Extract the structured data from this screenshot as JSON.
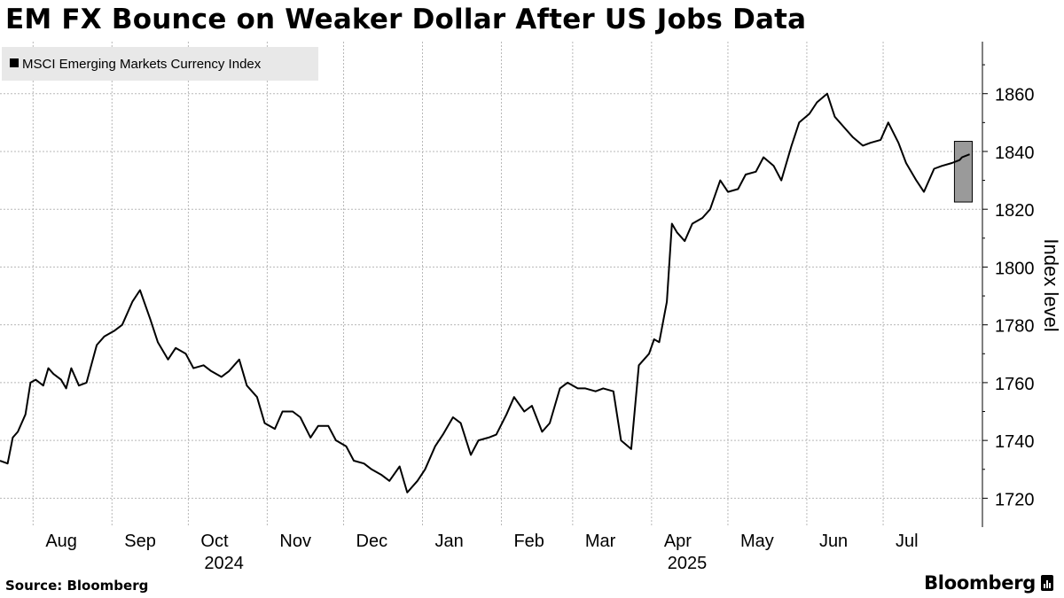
{
  "header": {
    "title": "EM FX Bounce on Weaker Dollar After US Jobs Data"
  },
  "footer": {
    "source": "Source: Bloomberg",
    "brand": "Bloomberg"
  },
  "chart_data": {
    "type": "line",
    "title": "EM FX Bounce on Weaker Dollar After US Jobs Data",
    "ylabel": "Index level",
    "xlabel": "",
    "ylim": [
      1710,
      1878
    ],
    "y_ticks": [
      1720,
      1740,
      1760,
      1780,
      1800,
      1820,
      1840,
      1860
    ],
    "y_axis_side": "right",
    "grid": true,
    "legend": {
      "placement": "top-left",
      "entries": [
        "MSCI Emerging Markets Currency Index"
      ]
    },
    "x_ticks": [
      {
        "label": "Aug",
        "date": "2024-08-01"
      },
      {
        "label": "Sep",
        "date": "2024-09-01"
      },
      {
        "label": "Oct",
        "date": "2024-10-01"
      },
      {
        "label": "Nov",
        "date": "2024-11-01"
      },
      {
        "label": "Dec",
        "date": "2024-12-01"
      },
      {
        "label": "Jan",
        "date": "2025-01-01"
      },
      {
        "label": "Feb",
        "date": "2025-02-01"
      },
      {
        "label": "Mar",
        "date": "2025-03-01"
      },
      {
        "label": "Apr",
        "date": "2025-04-01"
      },
      {
        "label": "May",
        "date": "2025-05-01"
      },
      {
        "label": "Jun",
        "date": "2025-06-01"
      },
      {
        "label": "Jul",
        "date": "2025-07-01"
      }
    ],
    "year_labels": [
      {
        "label": "2024",
        "date": "2024-10-15"
      },
      {
        "label": "2025",
        "date": "2025-04-15"
      }
    ],
    "x_range": [
      "2024-07-19",
      "2025-08-09"
    ],
    "highlight": {
      "x_from": "2025-07-29",
      "x_to": "2025-08-05",
      "y_from": 1822.5,
      "y_to": 1843.5
    },
    "series": [
      {
        "name": "MSCI Emerging Markets Currency Index",
        "x": [
          "2024-07-19",
          "2024-07-22",
          "2024-07-24",
          "2024-07-26",
          "2024-07-29",
          "2024-07-31",
          "2024-08-02",
          "2024-08-05",
          "2024-08-07",
          "2024-08-09",
          "2024-08-12",
          "2024-08-14",
          "2024-08-16",
          "2024-08-19",
          "2024-08-22",
          "2024-08-26",
          "2024-08-29",
          "2024-09-02",
          "2024-09-05",
          "2024-09-09",
          "2024-09-12",
          "2024-09-16",
          "2024-09-19",
          "2024-09-23",
          "2024-09-26",
          "2024-09-30",
          "2024-10-03",
          "2024-10-07",
          "2024-10-10",
          "2024-10-14",
          "2024-10-17",
          "2024-10-21",
          "2024-10-24",
          "2024-10-28",
          "2024-10-31",
          "2024-11-04",
          "2024-11-07",
          "2024-11-11",
          "2024-11-14",
          "2024-11-18",
          "2024-11-21",
          "2024-11-25",
          "2024-11-28",
          "2024-12-02",
          "2024-12-05",
          "2024-12-09",
          "2024-12-12",
          "2024-12-16",
          "2024-12-19",
          "2024-12-23",
          "2024-12-26",
          "2024-12-30",
          "2025-01-02",
          "2025-01-06",
          "2025-01-09",
          "2025-01-13",
          "2025-01-16",
          "2025-01-20",
          "2025-01-23",
          "2025-01-27",
          "2025-01-30",
          "2025-02-03",
          "2025-02-06",
          "2025-02-10",
          "2025-02-13",
          "2025-02-17",
          "2025-02-20",
          "2025-02-24",
          "2025-02-27",
          "2025-03-03",
          "2025-03-06",
          "2025-03-10",
          "2025-03-13",
          "2025-03-17",
          "2025-03-20",
          "2025-03-24",
          "2025-03-27",
          "2025-03-31",
          "2025-04-02",
          "2025-04-04",
          "2025-04-07",
          "2025-04-09",
          "2025-04-11",
          "2025-04-14",
          "2025-04-17",
          "2025-04-21",
          "2025-04-24",
          "2025-04-28",
          "2025-05-01",
          "2025-05-05",
          "2025-05-08",
          "2025-05-12",
          "2025-05-15",
          "2025-05-19",
          "2025-05-22",
          "2025-05-26",
          "2025-05-29",
          "2025-06-02",
          "2025-06-05",
          "2025-06-09",
          "2025-06-12",
          "2025-06-16",
          "2025-06-19",
          "2025-06-23",
          "2025-06-26",
          "2025-06-30",
          "2025-07-03",
          "2025-07-07",
          "2025-07-10",
          "2025-07-14",
          "2025-07-17",
          "2025-07-21",
          "2025-07-24",
          "2025-07-28",
          "2025-07-31",
          "2025-08-01",
          "2025-08-04"
        ],
        "values": [
          1733,
          1732,
          1741,
          1743,
          1749,
          1760,
          1761,
          1759,
          1765,
          1763,
          1761,
          1758,
          1765,
          1759,
          1760,
          1773,
          1776,
          1778,
          1780,
          1788,
          1792,
          1782,
          1774,
          1768,
          1772,
          1770,
          1765,
          1766,
          1764,
          1762,
          1764,
          1768,
          1759,
          1755,
          1746,
          1744,
          1750,
          1750,
          1748,
          1741,
          1745,
          1745,
          1740,
          1738,
          1733,
          1732,
          1730,
          1728,
          1726,
          1731,
          1722,
          1726,
          1730,
          1738,
          1742,
          1748,
          1746,
          1735,
          1740,
          1741,
          1742,
          1749,
          1755,
          1750,
          1752,
          1743,
          1746,
          1758,
          1760,
          1758,
          1758,
          1757,
          1758,
          1757,
          1740,
          1737,
          1766,
          1770,
          1775,
          1774,
          1788,
          1815,
          1812,
          1809,
          1815,
          1817,
          1820,
          1830,
          1826,
          1827,
          1832,
          1833,
          1838,
          1835,
          1830,
          1842,
          1850,
          1853,
          1857,
          1860,
          1852,
          1848,
          1845,
          1842,
          1843,
          1844,
          1850,
          1843,
          1836,
          1830,
          1826,
          1834,
          1835,
          1836,
          1837,
          1838,
          1839
        ]
      }
    ]
  }
}
